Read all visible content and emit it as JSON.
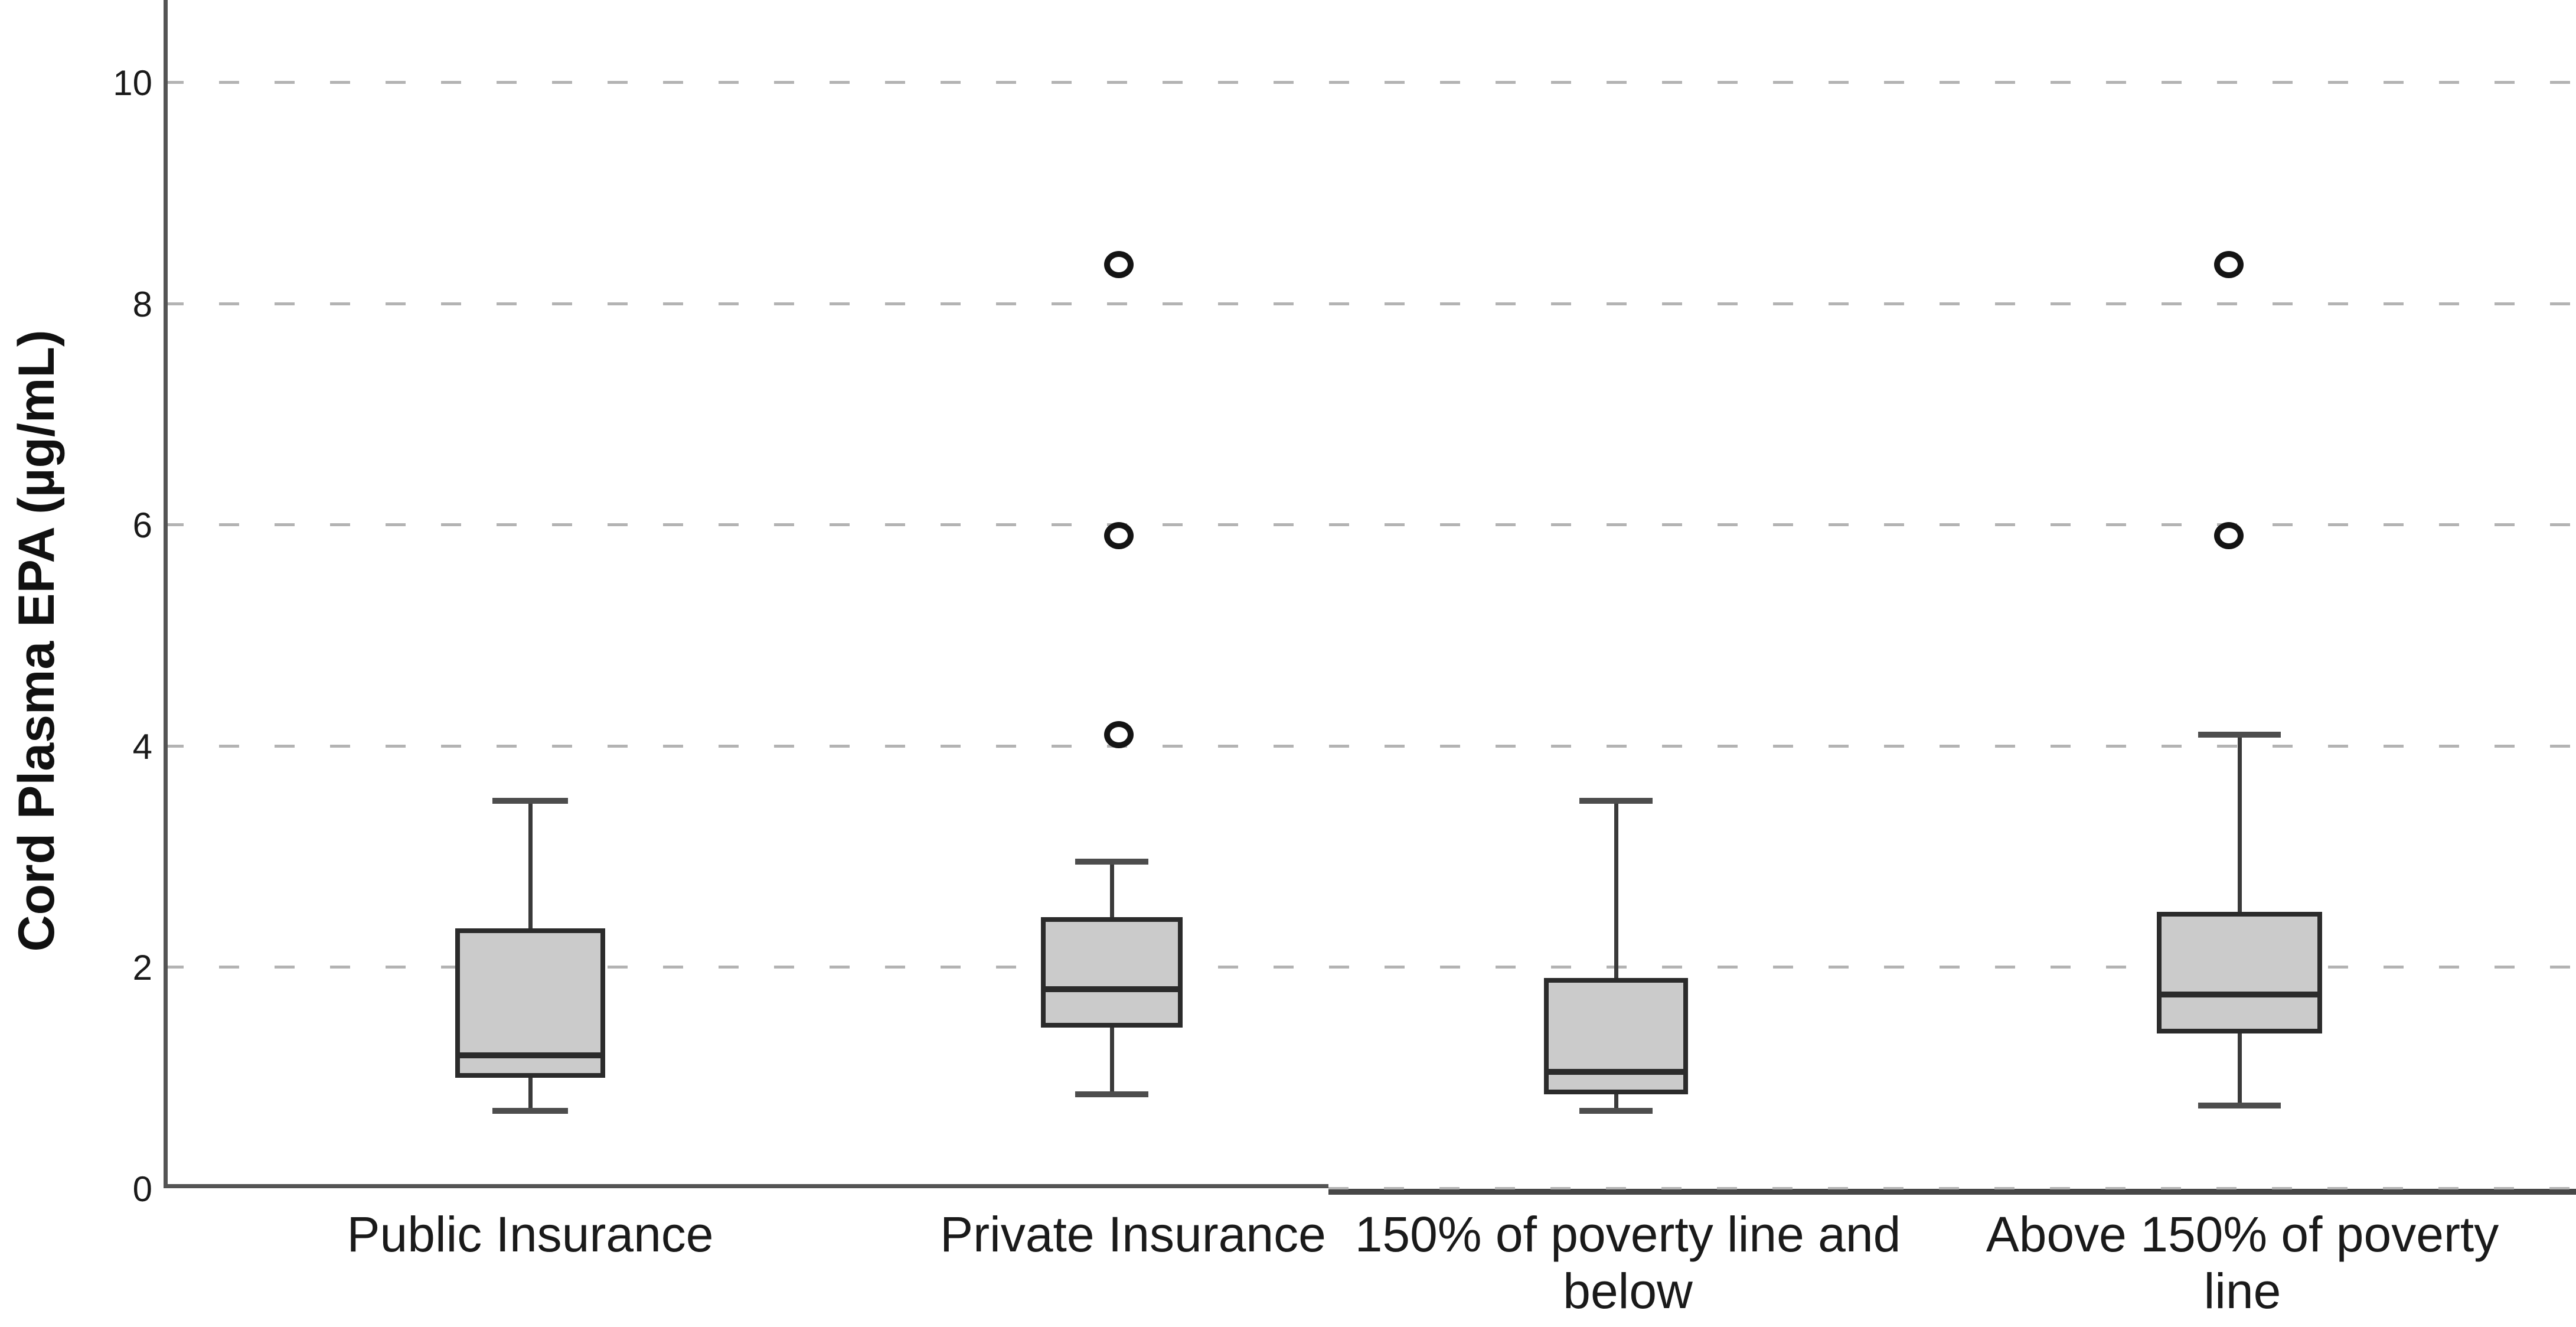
{
  "chart_data": {
    "type": "boxplot",
    "title": "",
    "ylabel": "Cord Plasma EPA (µg/mL)",
    "xlabel": "",
    "ylim": [
      0,
      10.75
    ],
    "y_ticks": [
      0,
      2,
      4,
      6,
      8,
      10
    ],
    "grid": "horizontal dashed gridlines at ticks 2,4,6,8,10",
    "legend": "none",
    "categories": [
      "Public Insurance",
      "Private Insurance",
      "150% of poverty line and below",
      "Above 150% of poverty line"
    ],
    "boxes": [
      {
        "category": "Public Insurance",
        "label_lines": [
          "Public Insurance"
        ],
        "whisker_low": 0.7,
        "q1": 1.0,
        "median": 1.2,
        "q3": 2.35,
        "whisker_high": 3.5,
        "outliers": []
      },
      {
        "category": "Private Insurance",
        "label_lines": [
          "Private Insurance"
        ],
        "whisker_low": 0.85,
        "q1": 1.45,
        "median": 1.8,
        "q3": 2.45,
        "whisker_high": 2.95,
        "outliers": [
          4.1,
          5.9,
          8.35
        ]
      },
      {
        "category": "150% of poverty line and below",
        "label_lines": [
          "150% of poverty line and",
          "below"
        ],
        "whisker_low": 0.7,
        "q1": 0.85,
        "median": 1.05,
        "q3": 1.9,
        "whisker_high": 3.5,
        "outliers": []
      },
      {
        "category": "Above 150% of poverty line",
        "label_lines": [
          "Above 150% of poverty",
          "line"
        ],
        "whisker_low": 0.75,
        "q1": 1.4,
        "median": 1.75,
        "q3": 2.5,
        "whisker_high": 4.1,
        "outliers": [
          5.9,
          8.35
        ]
      }
    ],
    "colors": {
      "box_fill": "#cbcbcb",
      "box_border": "#2b2b2b",
      "median": "#2b2b2b",
      "whisker": "#3a3a3a",
      "gridline": "#b3b3b3",
      "axis": "#545454",
      "outlier": "#141414",
      "text": "#1a1a1a",
      "background": "#ffffff"
    }
  }
}
